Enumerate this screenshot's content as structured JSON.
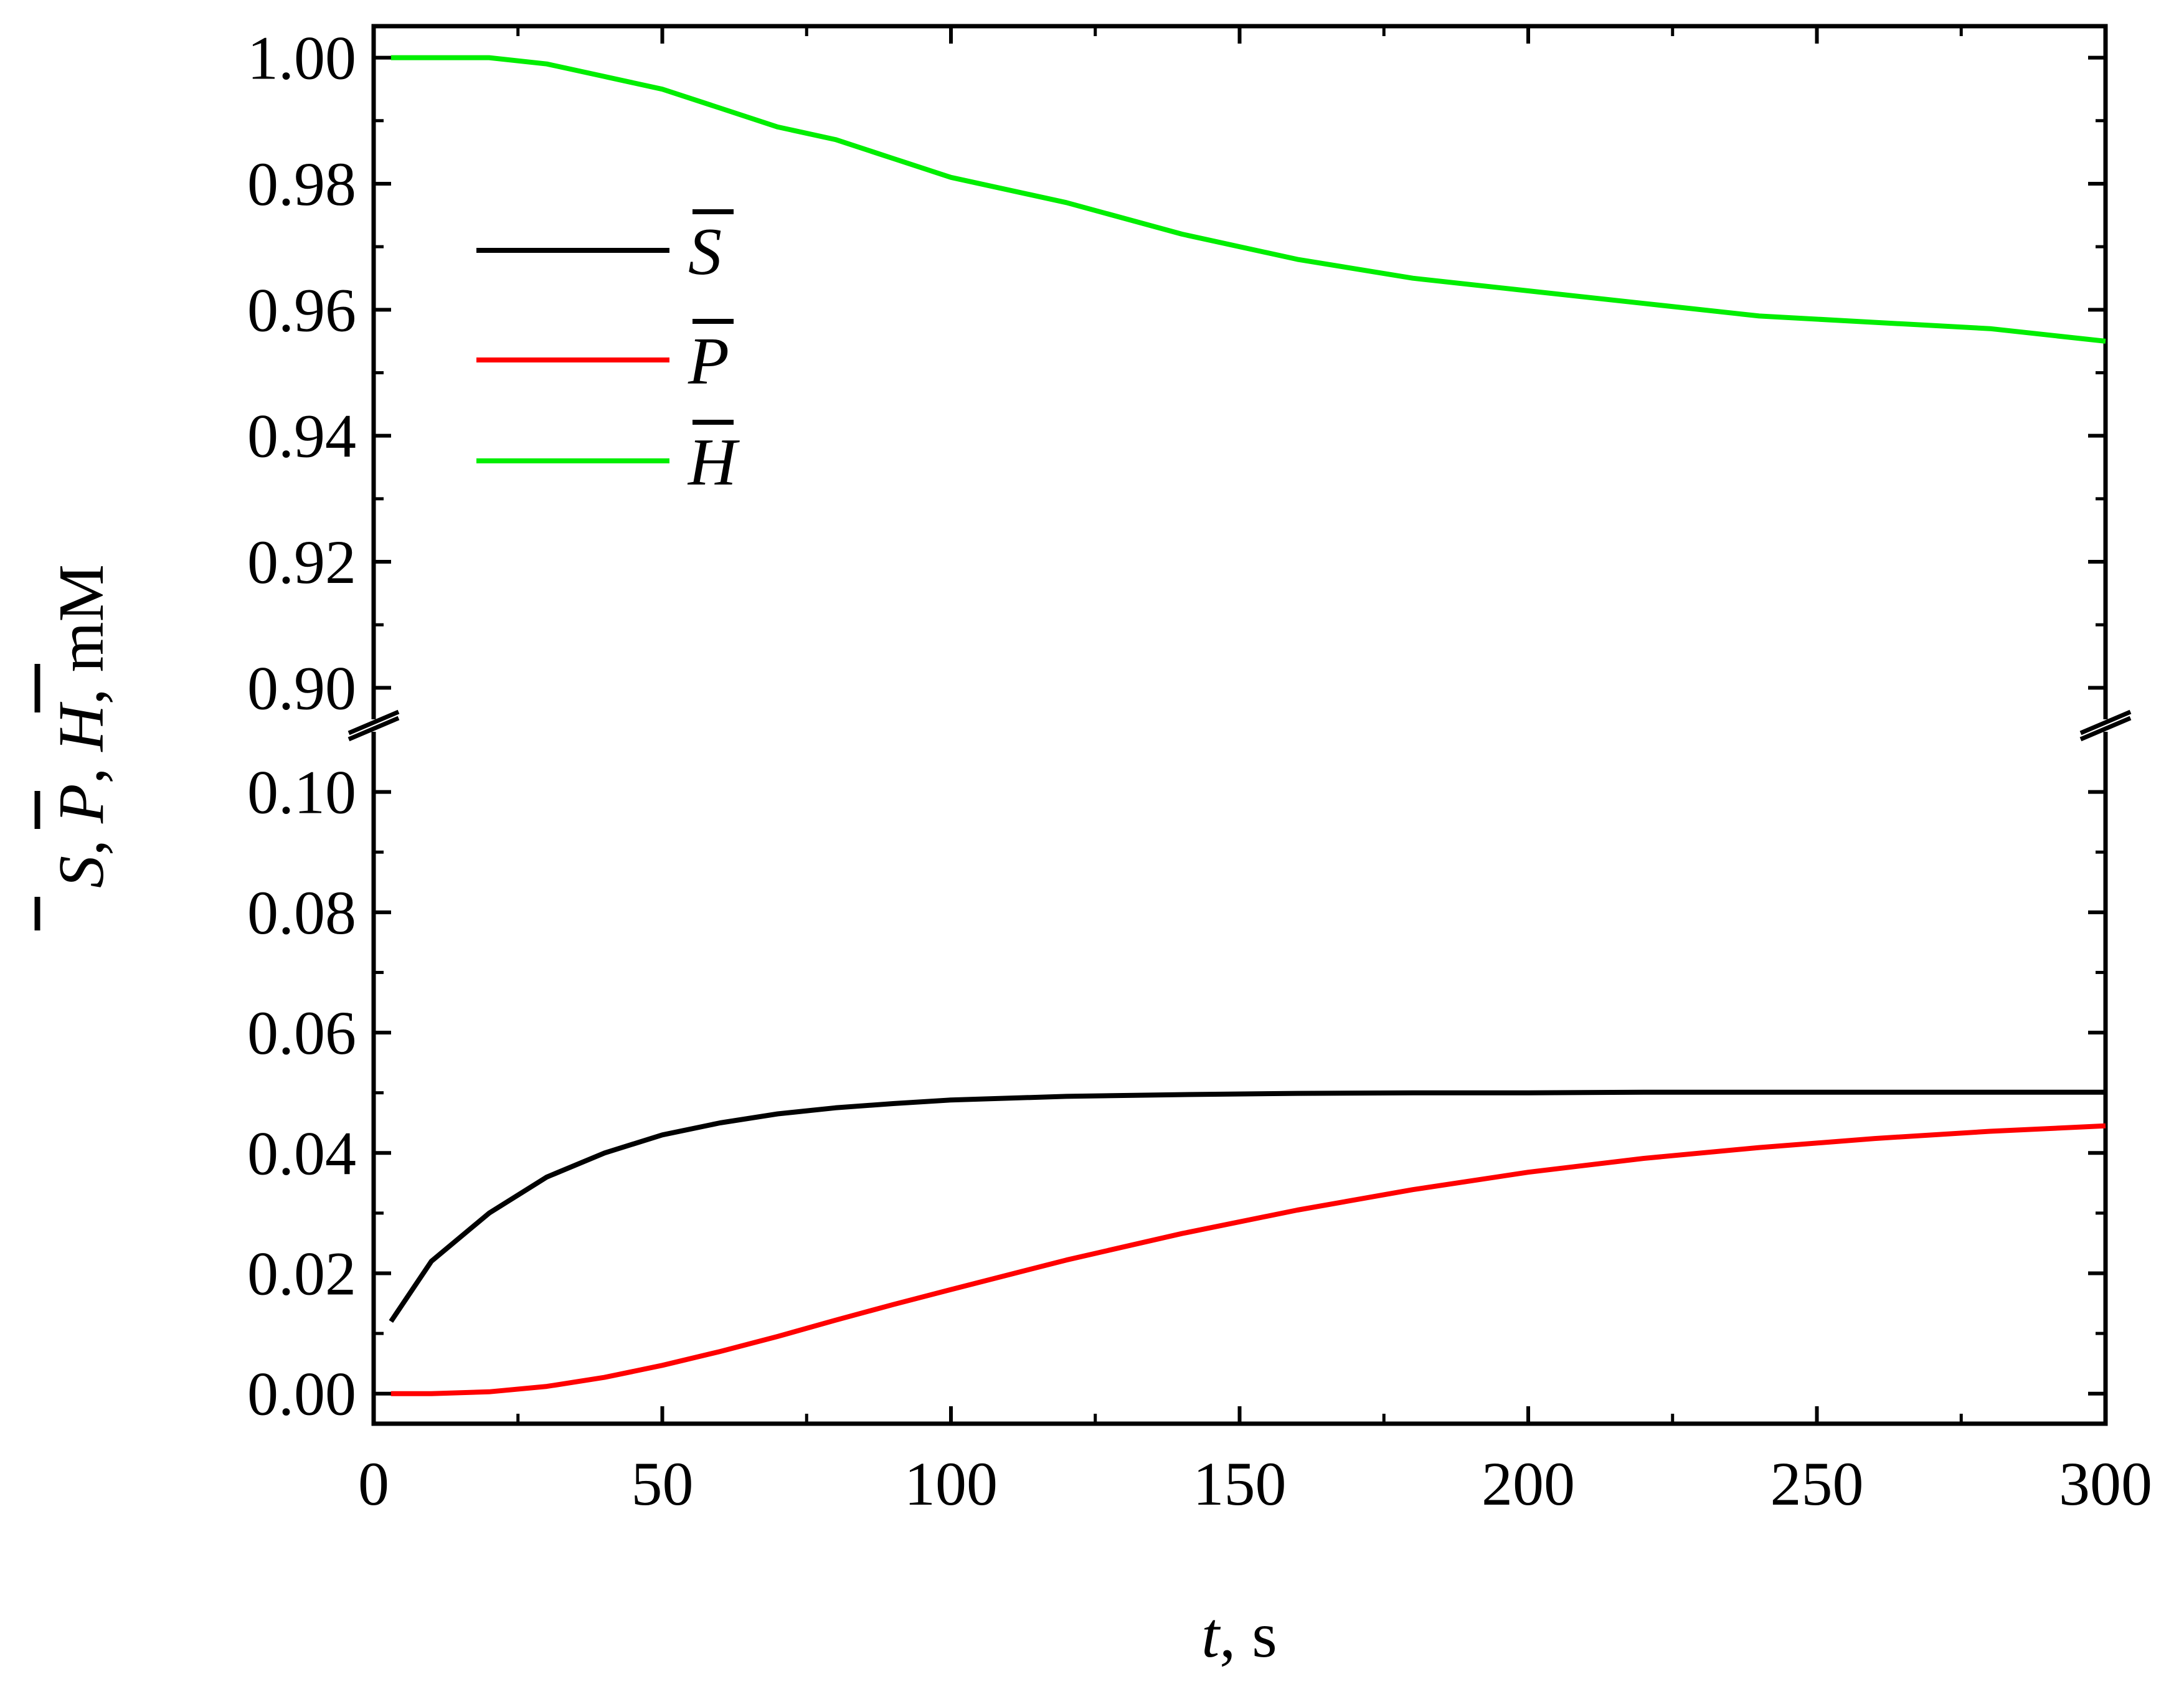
{
  "chart_data": {
    "type": "line",
    "xlabel": {
      "italic": "t",
      "rest": ", s"
    },
    "ylabel": {
      "s": "S",
      "p": "P",
      "h": "H",
      "sep": ", ",
      "unit": ", mM"
    },
    "xlim": [
      0,
      300
    ],
    "xticks": [
      0,
      50,
      100,
      150,
      200,
      250,
      300
    ],
    "x_tick_labels": [
      "0",
      "50",
      "100",
      "150",
      "200",
      "250",
      "300"
    ],
    "axis_break": true,
    "upper_panel": {
      "ylim": [
        0.895,
        1.005
      ],
      "yticks": [
        0.9,
        0.92,
        0.94,
        0.96,
        0.98,
        1.0
      ],
      "y_tick_labels": [
        "0.90",
        "0.92",
        "0.94",
        "0.96",
        "0.98",
        "1.00"
      ]
    },
    "lower_panel": {
      "ylim": [
        -0.005,
        0.11
      ],
      "yticks": [
        0.0,
        0.02,
        0.04,
        0.06,
        0.08,
        0.1
      ],
      "y_tick_labels": [
        "0.00",
        "0.02",
        "0.04",
        "0.06",
        "0.08",
        "0.10"
      ]
    },
    "grid": false,
    "legend_position": "upper-left",
    "series": [
      {
        "name": "S",
        "color": "#000000",
        "panel": "lower",
        "x": [
          3,
          10,
          20,
          30,
          40,
          50,
          60,
          70,
          80,
          90,
          100,
          120,
          140,
          160,
          180,
          200,
          220,
          240,
          260,
          280,
          300
        ],
        "y": [
          0.012,
          0.022,
          0.03,
          0.036,
          0.04,
          0.043,
          0.045,
          0.0465,
          0.0475,
          0.0482,
          0.0488,
          0.0494,
          0.0497,
          0.0499,
          0.05,
          0.05,
          0.0501,
          0.0501,
          0.0501,
          0.0501,
          0.0501
        ]
      },
      {
        "name": "P",
        "color": "#ff0000",
        "panel": "lower",
        "x": [
          3,
          10,
          20,
          30,
          40,
          50,
          60,
          70,
          80,
          90,
          100,
          120,
          140,
          160,
          180,
          200,
          220,
          240,
          260,
          280,
          300
        ],
        "y": [
          0.0,
          0.0,
          0.0003,
          0.0012,
          0.0027,
          0.0047,
          0.007,
          0.0095,
          0.0122,
          0.0148,
          0.0173,
          0.0222,
          0.0266,
          0.0305,
          0.0339,
          0.0368,
          0.0391,
          0.0409,
          0.0424,
          0.0436,
          0.0445
        ]
      },
      {
        "name": "H",
        "color": "#00ee00",
        "panel": "upper",
        "x": [
          3,
          10,
          20,
          30,
          40,
          50,
          60,
          70,
          80,
          90,
          100,
          120,
          140,
          160,
          180,
          200,
          220,
          240,
          260,
          280,
          300
        ],
        "y": [
          1.0,
          1.0,
          1.0,
          0.999,
          0.997,
          0.995,
          0.992,
          0.989,
          0.987,
          0.984,
          0.981,
          0.977,
          0.972,
          0.968,
          0.965,
          0.963,
          0.961,
          0.959,
          0.958,
          0.957,
          0.955
        ]
      }
    ]
  }
}
